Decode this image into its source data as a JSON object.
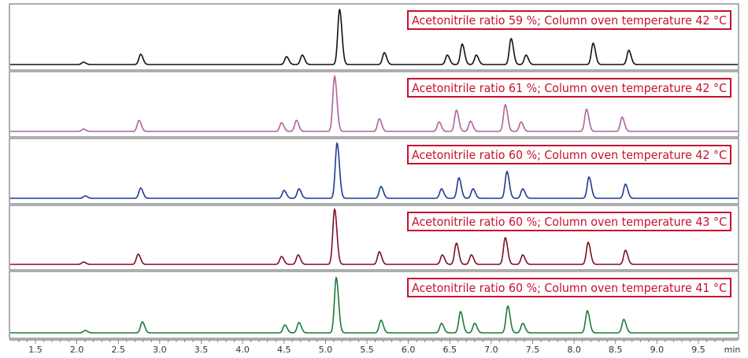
{
  "chart_data": {
    "type": "line",
    "title": "",
    "xlabel": "",
    "x_unit": "min",
    "xlim": [
      1.2,
      9.9
    ],
    "x_ticks": [
      "1.5",
      "2.0",
      "2.5",
      "3.0",
      "3.5",
      "4.0",
      "4.5",
      "5.0",
      "5.5",
      "6.0",
      "6.5",
      "7.0",
      "7.5",
      "8.0",
      "8.5",
      "9.0",
      "9.5"
    ],
    "grid": false,
    "label_color": "#c8102e",
    "panels": [
      {
        "label": "Acetonitrile ratio 59 %; Column oven temperature 42 °C",
        "color": "#111111",
        "peak_times": [
          2.08,
          2.77,
          4.53,
          4.72,
          5.17,
          5.71,
          6.47,
          6.65,
          6.82,
          7.24,
          7.42,
          8.23,
          8.66
        ],
        "peak_heights": [
          3,
          13,
          10,
          12,
          70,
          15,
          12,
          26,
          12,
          33,
          12,
          27,
          18
        ]
      },
      {
        "label": "Acetonitrile ratio 61 %; Column oven temperature 42 °C",
        "color": "#b0609c",
        "peak_times": [
          2.08,
          2.75,
          4.47,
          4.65,
          5.11,
          5.65,
          6.37,
          6.58,
          6.75,
          7.17,
          7.36,
          8.15,
          8.58
        ],
        "peak_heights": [
          3,
          14,
          11,
          14,
          70,
          16,
          12,
          27,
          13,
          34,
          12,
          28,
          18
        ]
      },
      {
        "label": "Acetonitrile ratio 60 %; Column oven temperature 42 °C",
        "color": "#1f3a93",
        "peak_times": [
          2.1,
          2.77,
          4.5,
          4.68,
          5.14,
          5.67,
          6.4,
          6.61,
          6.78,
          7.19,
          7.38,
          8.18,
          8.62
        ],
        "peak_heights": [
          3,
          13,
          10,
          12,
          70,
          15,
          12,
          26,
          12,
          34,
          12,
          27,
          18
        ]
      },
      {
        "label": "Acetonitrile ratio 60 %; Column oven temperature 43 °C",
        "color": "#7a1020",
        "peak_times": [
          2.08,
          2.74,
          4.47,
          4.67,
          5.11,
          5.65,
          6.41,
          6.58,
          6.76,
          7.17,
          7.38,
          8.17,
          8.62
        ],
        "peak_heights": [
          3,
          13,
          10,
          12,
          70,
          16,
          12,
          27,
          12,
          34,
          12,
          28,
          18
        ]
      },
      {
        "label": "Acetonitrile ratio 60 %; Column oven temperature 41 °C",
        "color": "#1a7a3a",
        "peak_times": [
          2.1,
          2.79,
          4.51,
          4.68,
          5.13,
          5.67,
          6.4,
          6.63,
          6.8,
          7.2,
          7.38,
          8.16,
          8.6
        ],
        "peak_heights": [
          3,
          14,
          10,
          13,
          70,
          16,
          12,
          27,
          12,
          34,
          12,
          28,
          17
        ]
      }
    ]
  }
}
